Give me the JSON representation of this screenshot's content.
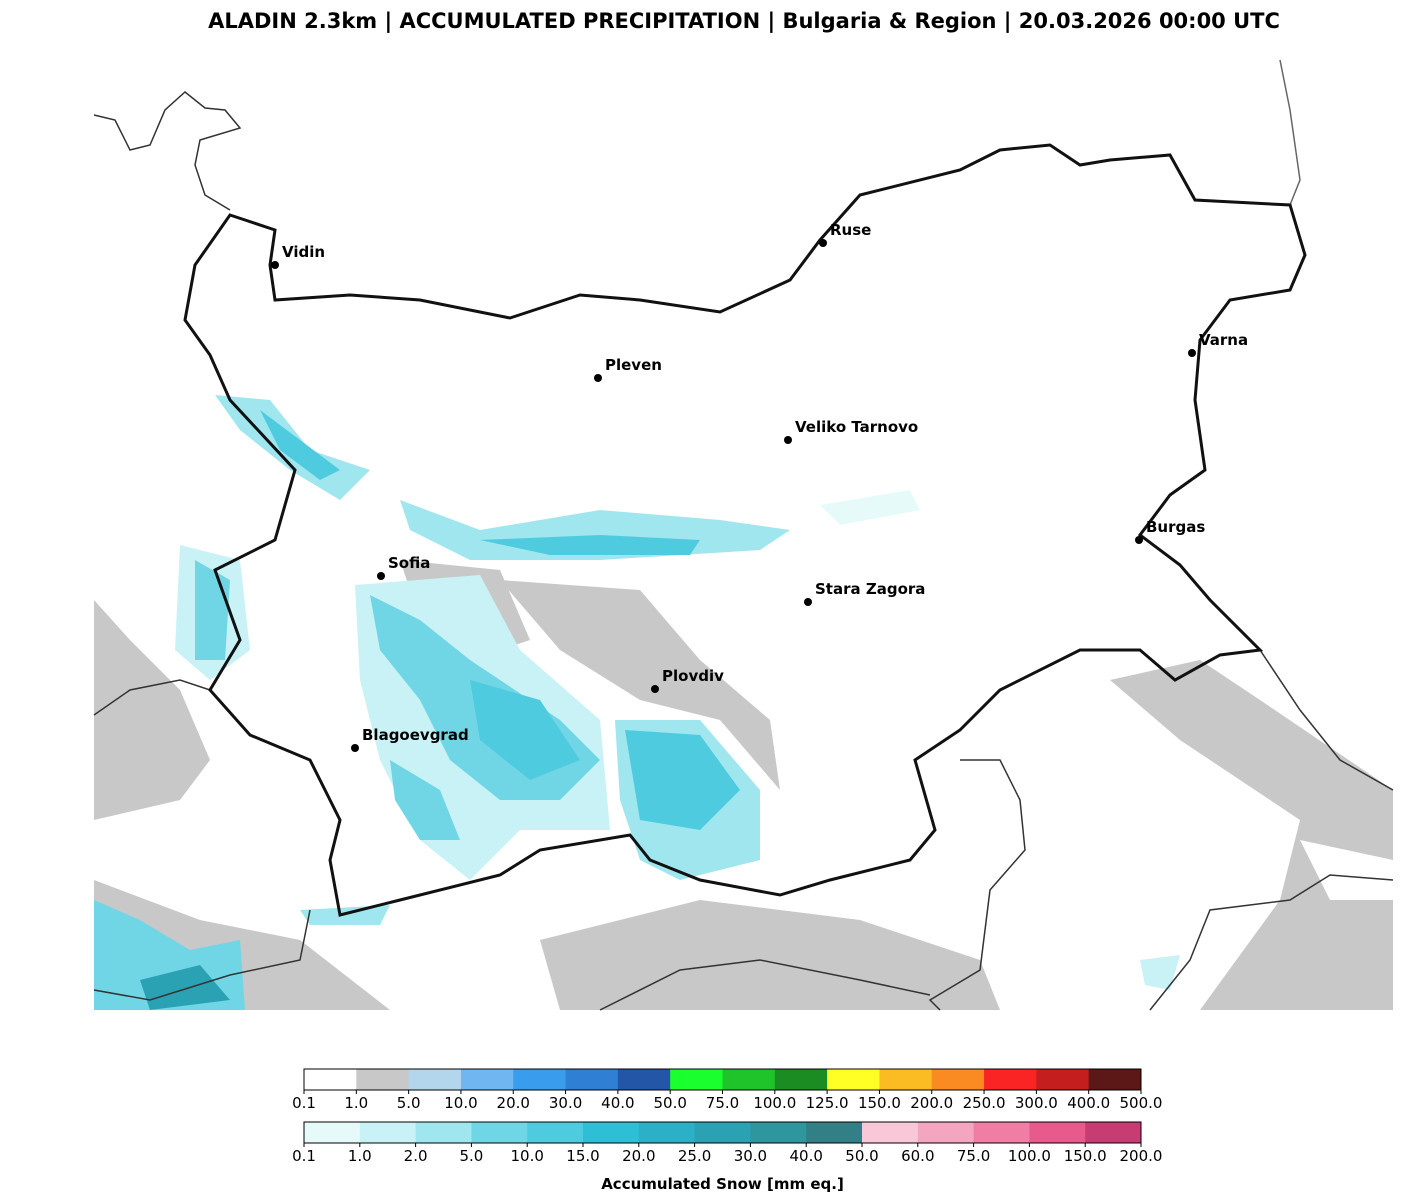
{
  "title": "ALADIN 2.3km | ACCUMULATED PRECIPITATION | Bulgaria & Region | 20.03.2026 00:00 UTC",
  "cities": [
    "Vidin",
    "Ruse",
    "Pleven",
    "Varna",
    "Veliko Tarnovo",
    "Burgas",
    "Sofia",
    "Stara Zagora",
    "Plovdiv",
    "Blagoevgrad"
  ],
  "colorbars": [
    {
      "ticks": [
        {
          "value": 0.1,
          "label": "0.1"
        },
        {
          "value": 1,
          "label": "1.0"
        },
        {
          "value": 5,
          "label": "5.0"
        },
        {
          "value": 10,
          "label": "10.0"
        },
        {
          "value": 20,
          "label": "20.0"
        },
        {
          "value": 30,
          "label": "30.0"
        },
        {
          "value": 40,
          "label": "40.0"
        },
        {
          "value": 50,
          "label": "50.0"
        },
        {
          "value": 75,
          "label": "75.0"
        },
        {
          "value": 100,
          "label": "100.0"
        },
        {
          "value": 125,
          "label": "125.0"
        },
        {
          "value": 150,
          "label": "150.0"
        },
        {
          "value": 200,
          "label": "200.0"
        },
        {
          "value": 250,
          "label": "250.0"
        },
        {
          "value": 300,
          "label": "300.0"
        },
        {
          "value": 400,
          "label": "400.0"
        },
        {
          "value": 500,
          "label": "500.0"
        }
      ],
      "colors": [
        "#ffffff",
        "#c8c8c8",
        "#b4d6ec",
        "#70b6f0",
        "#3a9cec",
        "#2f7fd4",
        "#2456a8",
        "#1aff2e",
        "#1fc42a",
        "#1a8c22",
        "#ffff26",
        "#fbbb23",
        "#fa8a22",
        "#fa2424",
        "#c41e1e",
        "#5c1717"
      ]
    },
    {
      "ticks": [
        {
          "value": 0.1,
          "label": "0.1"
        },
        {
          "value": 1,
          "label": "1.0"
        },
        {
          "value": 2,
          "label": "2.0"
        },
        {
          "value": 5,
          "label": "5.0"
        },
        {
          "value": 10,
          "label": "10.0"
        },
        {
          "value": 15,
          "label": "15.0"
        },
        {
          "value": 20,
          "label": "20.0"
        },
        {
          "value": 25,
          "label": "25.0"
        },
        {
          "value": 30,
          "label": "30.0"
        },
        {
          "value": 40,
          "label": "40.0"
        },
        {
          "value": 50,
          "label": "50.0"
        },
        {
          "value": 60,
          "label": "60.0"
        },
        {
          "value": 75,
          "label": "75.0"
        },
        {
          "value": 100,
          "label": "100.0"
        },
        {
          "value": 150,
          "label": "150.0"
        },
        {
          "value": 200,
          "label": "200.0"
        }
      ],
      "colors": [
        "#e6fafa",
        "#c8f2f5",
        "#a0e6ee",
        "#70d6e6",
        "#4ecbdf",
        "#2ebfd6",
        "#2cb0c8",
        "#2aa2b4",
        "#2f96a0",
        "#337f86",
        "#f8c8d8",
        "#f4a6c0",
        "#f07ea4",
        "#e85a8c",
        "#c83c74"
      ],
      "label": "Accumulated Snow [mm eq.]"
    }
  ]
}
